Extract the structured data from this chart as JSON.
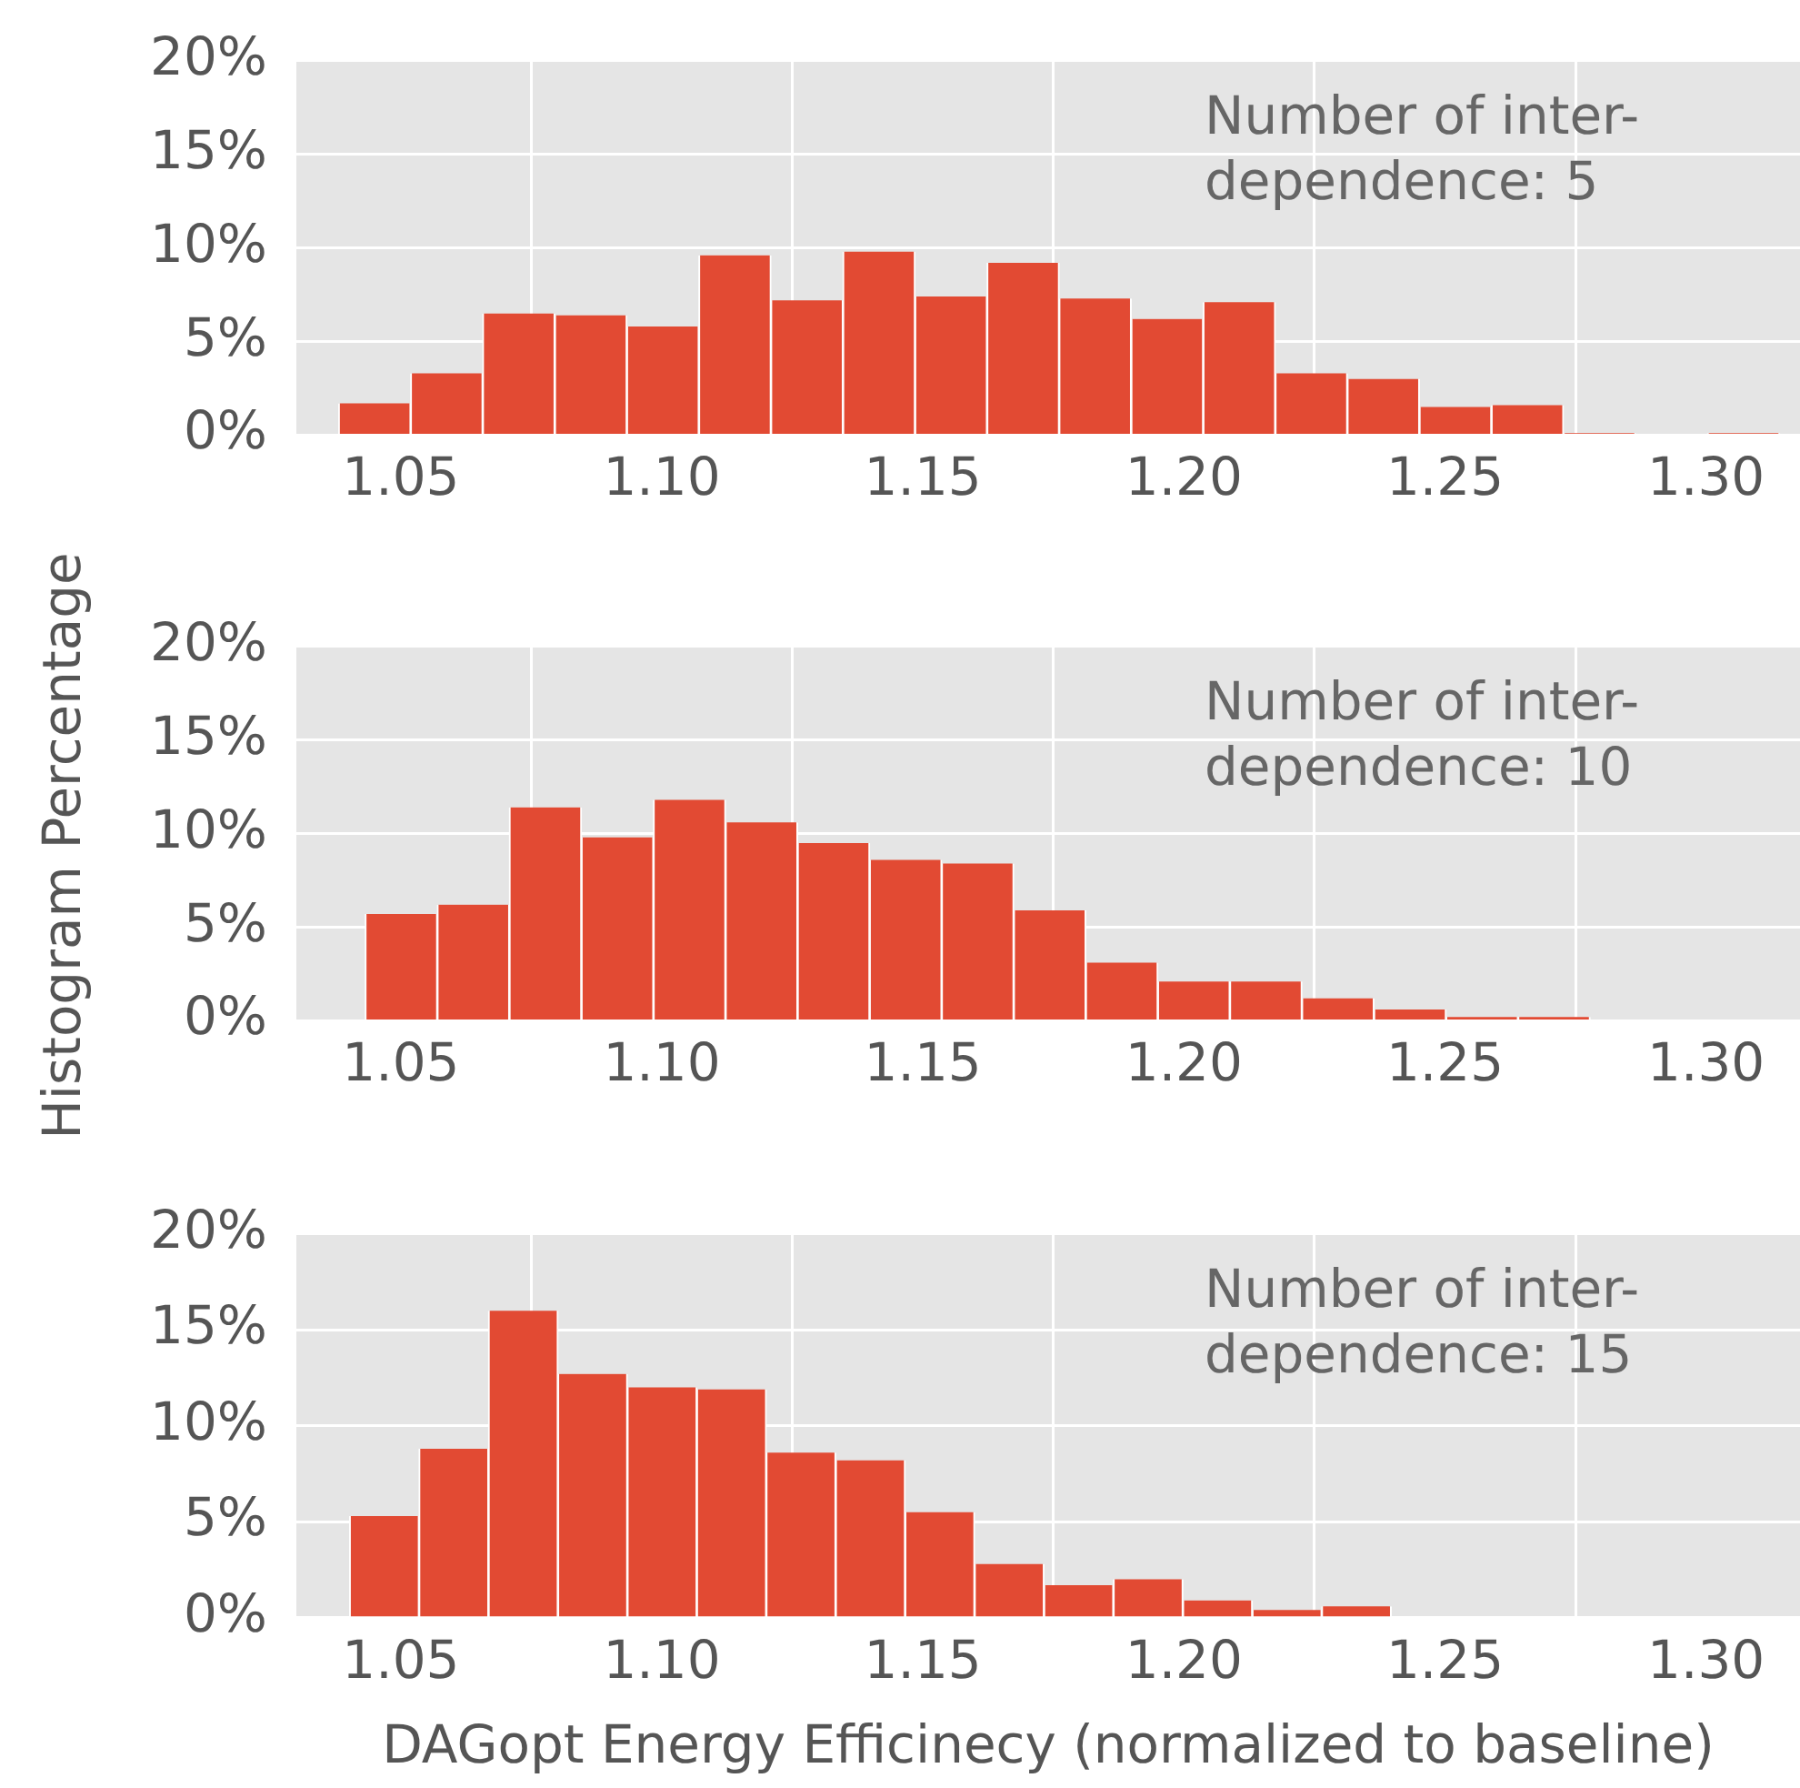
{
  "chart_data": [
    {
      "type": "histogram",
      "color": "#e24a33",
      "grid": true,
      "annotations": [
        "Number of inter-\ndependence: 5"
      ],
      "bins": [
        1.0381,
        1.0519,
        1.0657,
        1.0795,
        1.0933,
        1.1071,
        1.1209,
        1.1347,
        1.1485,
        1.1623,
        1.1761,
        1.1899,
        1.2037,
        1.2175,
        1.2313,
        1.2451,
        1.2589,
        1.2727,
        1.2865,
        1.3003,
        1.3141
      ],
      "values": [
        1.7,
        3.3,
        6.5,
        6.4,
        5.8,
        9.6,
        7.2,
        9.8,
        7.4,
        9.2,
        7.3,
        6.2,
        7.1,
        3.3,
        3.0,
        1.5,
        1.6,
        0.1,
        0,
        0.1
      ],
      "xlim": [
        1.03,
        1.318
      ],
      "xticks": [
        1.05,
        {
          "value": 1.1,
          "label": "1.10"
        },
        1.15,
        {
          "value": 1.2,
          "label": "1.20"
        },
        1.25,
        {
          "value": 1.3,
          "label": "1.30"
        }
      ],
      "ylim": [
        0,
        20
      ],
      "yticks": [
        {
          "value": 0,
          "label": "0%"
        },
        {
          "value": 5,
          "label": "5%"
        },
        {
          "value": 10,
          "label": "10%"
        },
        {
          "value": 15,
          "label": "15%"
        },
        {
          "value": 20,
          "label": "20%"
        }
      ]
    },
    {
      "type": "histogram",
      "color": "#e24a33",
      "grid": true,
      "ylabel": "Histogram Percentage",
      "annotations": [
        "Number of inter-\ndependence: 10"
      ],
      "bins": [
        1.0432,
        1.057,
        1.0708,
        1.0846,
        1.0984,
        1.1122,
        1.126,
        1.1398,
        1.1536,
        1.1674,
        1.1812,
        1.195,
        1.2088,
        1.2226,
        1.2364,
        1.2502,
        1.264,
        1.2778
      ],
      "values": [
        5.7,
        6.2,
        11.4,
        9.8,
        11.8,
        10.6,
        9.5,
        8.6,
        8.4,
        5.9,
        3.1,
        2.1,
        2.1,
        1.2,
        0.6,
        0.2,
        0.2
      ],
      "xlim": [
        1.03,
        1.318
      ],
      "xticks": [
        1.05,
        {
          "value": 1.1,
          "label": "1.10"
        },
        1.15,
        {
          "value": 1.2,
          "label": "1.20"
        },
        1.25,
        {
          "value": 1.3,
          "label": "1.30"
        }
      ],
      "ylim": [
        0,
        20
      ],
      "yticks": [
        {
          "value": 0,
          "label": "0%"
        },
        {
          "value": 5,
          "label": "5%"
        },
        {
          "value": 10,
          "label": "10%"
        },
        {
          "value": 15,
          "label": "15%"
        },
        {
          "value": 20,
          "label": "20%"
        }
      ]
    },
    {
      "type": "histogram",
      "color": "#e24a33",
      "grid": true,
      "xlabel": "DAGopt Energy Efficinecy (normalized to baseline)",
      "annotations": [
        "Number of inter-\ndependence: 15"
      ],
      "bins": [
        1.0402,
        1.0535,
        1.0668,
        1.0801,
        1.0934,
        1.1067,
        1.12,
        1.1333,
        1.1466,
        1.1599,
        1.1732,
        1.1865,
        1.1998,
        1.2131,
        1.2264,
        1.2397
      ],
      "values": [
        5.3,
        8.8,
        16.0,
        12.7,
        12.0,
        11.9,
        8.6,
        8.2,
        5.5,
        2.8,
        1.7,
        2.0,
        0.9,
        0.4,
        0.6
      ],
      "xlim": [
        1.03,
        1.318
      ],
      "xticks": [
        1.05,
        {
          "value": 1.1,
          "label": "1.10"
        },
        1.15,
        {
          "value": 1.2,
          "label": "1.20"
        },
        1.25,
        {
          "value": 1.3,
          "label": "1.30"
        }
      ],
      "ylim": [
        0,
        20
      ],
      "yticks": [
        {
          "value": 0,
          "label": "0%"
        },
        {
          "value": 5,
          "label": "5%"
        },
        {
          "value": 10,
          "label": "10%"
        },
        {
          "value": 15,
          "label": "15%"
        },
        {
          "value": 20,
          "label": "20%"
        }
      ]
    }
  ]
}
